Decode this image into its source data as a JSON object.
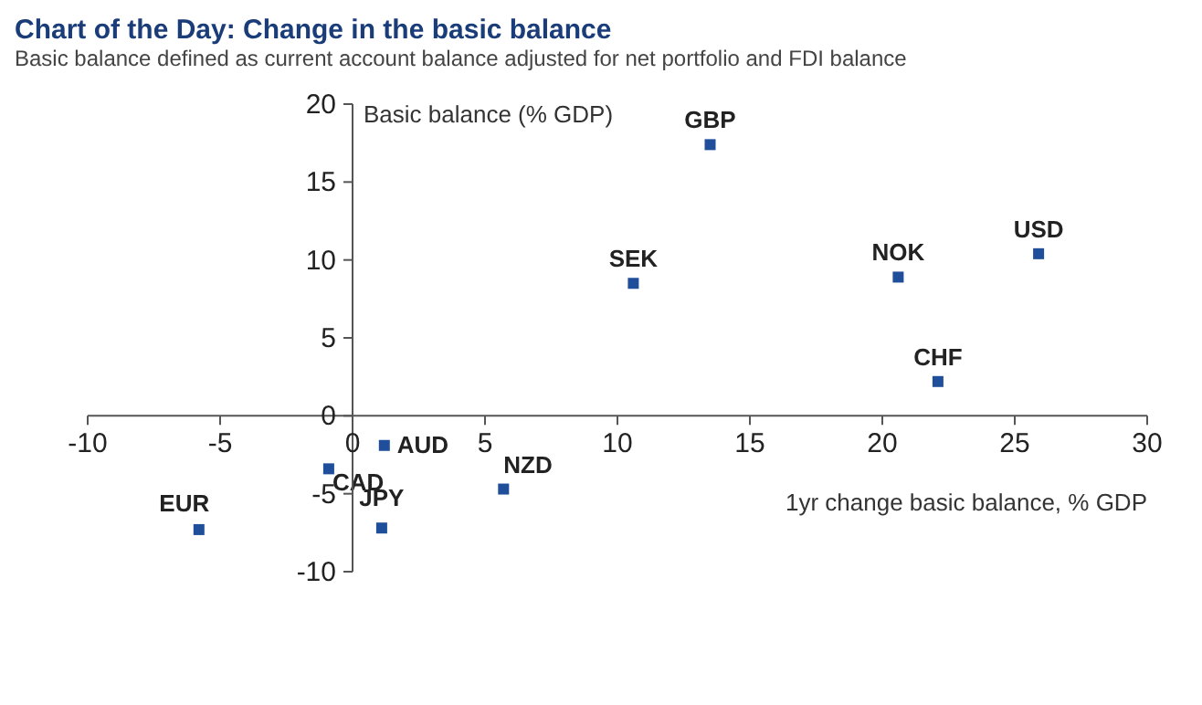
{
  "chart_data": {
    "type": "scatter",
    "title": "Chart of the Day: Change in the basic balance",
    "subtitle": "Basic balance defined as current account balance adjusted for net portfolio and FDI balance",
    "xlabel": "1yr change basic  balance, % GDP",
    "ylabel": "Basic balance  (% GDP)",
    "x": [
      13.5,
      10.6,
      20.6,
      25.9,
      22.1,
      1.2,
      -0.9,
      1.1,
      5.7,
      -5.8
    ],
    "values": [
      17.4,
      8.5,
      8.9,
      10.4,
      2.2,
      -1.9,
      -3.4,
      -7.2,
      -4.7,
      -7.3
    ],
    "color": "#1f4e9a",
    "marker": "square",
    "xlim": [
      -10,
      30
    ],
    "xticks": [
      -10,
      -5,
      0,
      5,
      10,
      15,
      20,
      25,
      30
    ],
    "ylim": [
      -10,
      20
    ],
    "yticks": [
      -10,
      -5,
      0,
      5,
      10,
      15,
      20
    ],
    "grid": false,
    "legend": false,
    "annotations": [
      {
        "text": "GBP",
        "x": 13.5,
        "y": 17.4
      },
      {
        "text": "SEK",
        "x": 10.6,
        "y": 8.5
      },
      {
        "text": "NOK",
        "x": 20.6,
        "y": 8.9
      },
      {
        "text": "USD",
        "x": 25.9,
        "y": 10.4
      },
      {
        "text": "CHF",
        "x": 22.1,
        "y": 2.2
      },
      {
        "text": "AUD",
        "x": 1.2,
        "y": -1.9
      },
      {
        "text": "CAD",
        "x": -0.9,
        "y": -3.4
      },
      {
        "text": "JPY",
        "x": 1.1,
        "y": -7.2
      },
      {
        "text": "NZD",
        "x": 5.7,
        "y": -4.7
      },
      {
        "text": "EUR",
        "x": -5.8,
        "y": -7.3
      }
    ]
  }
}
